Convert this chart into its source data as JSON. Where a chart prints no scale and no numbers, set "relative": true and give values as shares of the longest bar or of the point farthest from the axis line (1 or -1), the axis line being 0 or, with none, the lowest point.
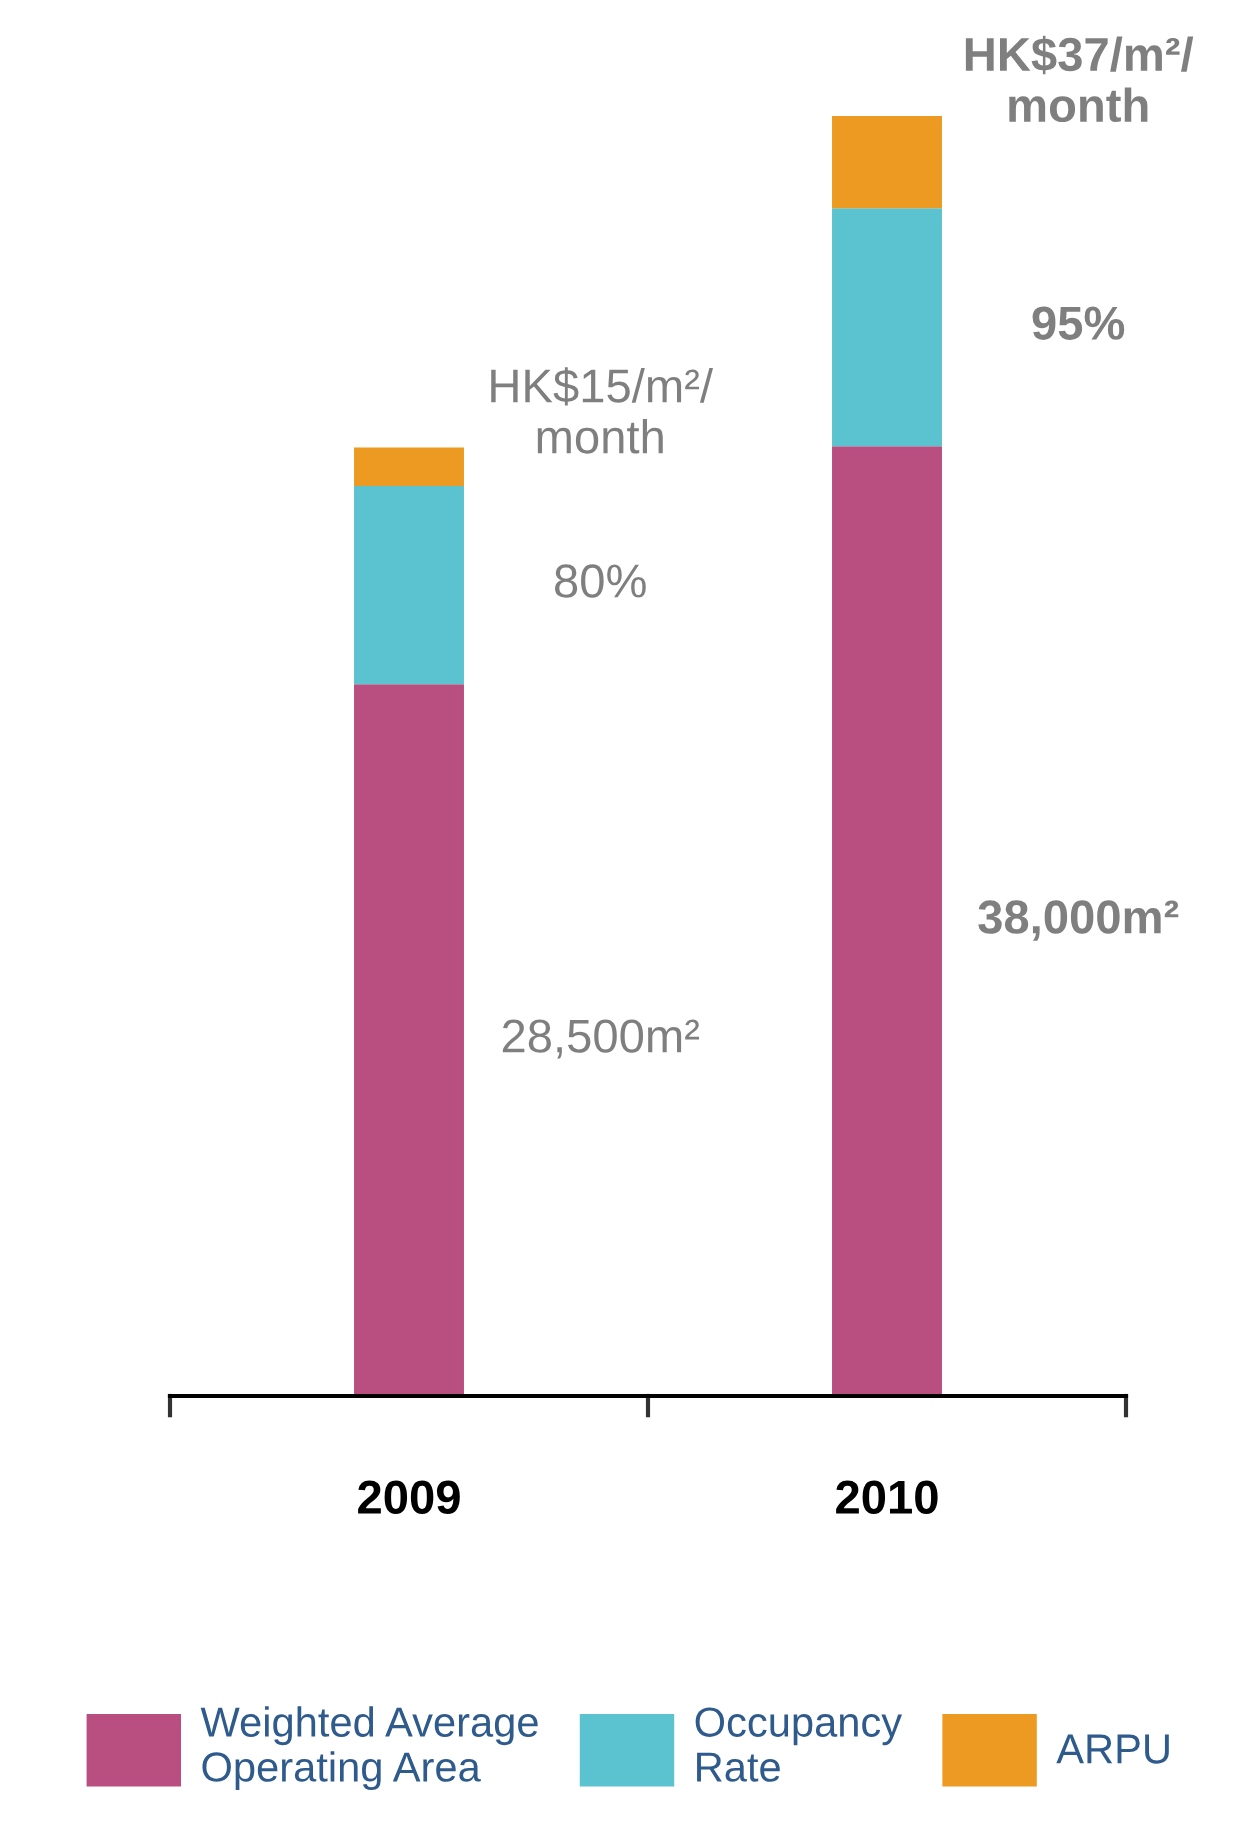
{
  "chart_data": {
    "type": "bar",
    "stacked": true,
    "relative": true,
    "categories": [
      "2009",
      "2010"
    ],
    "legend": "bottom",
    "series": [
      {
        "name": "Weighted Average\nOperating Area",
        "color": "#b94e80",
        "values": [
          0.556,
          0.742
        ]
      },
      {
        "name": "Occupancy\nRate",
        "color": "#5bc3cf",
        "values": [
          0.155,
          0.186
        ]
      },
      {
        "name": "ARPU",
        "color": "#ec9a22",
        "values": [
          0.03,
          0.072
        ]
      }
    ],
    "annotations": [
      "28,500m²",
      "80%",
      "HK$15/m²/\nmonth",
      "38,000m²",
      "95%",
      "HK$37/m²/\nmonth"
    ]
  }
}
